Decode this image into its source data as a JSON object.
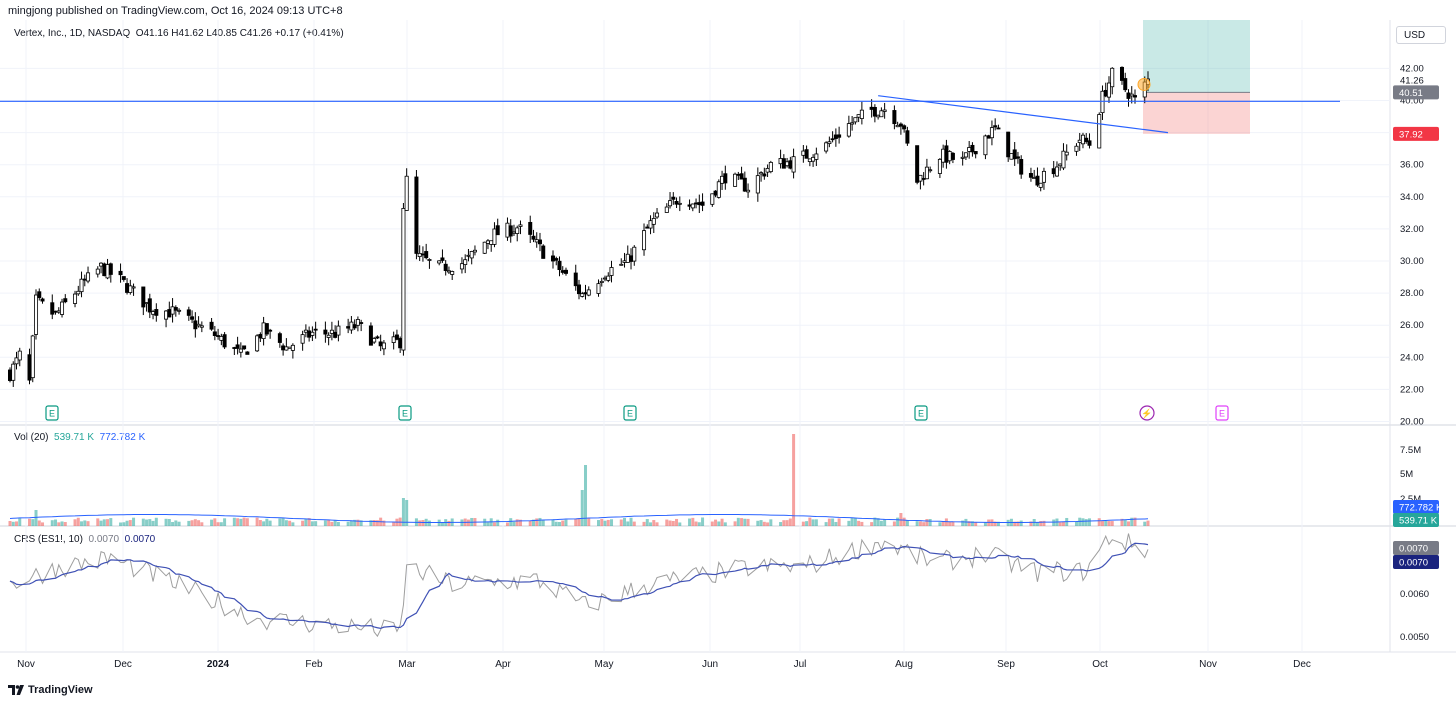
{
  "header": {
    "published": "mingjong published on TradingView.com, Oct 16, 2024 09:13 UTC+8",
    "symbol_line": "Vertex, Inc., 1D, NASDAQ",
    "ohlc": "O41.16 H41.62 L40.85 C41.26 +0.17 (+0.41%)"
  },
  "currency": "USD",
  "volume_legend": {
    "name": "Vol (20)",
    "v1": "539.71 K",
    "v2": "772.782 K"
  },
  "crs_legend": {
    "name": "CRS (ES1!, 10)",
    "v1": "0.0070",
    "v2": "0.0070"
  },
  "brand": "TradingView",
  "colors": {
    "up": "#26a69a",
    "down": "#ef5350",
    "line": "#2962ff",
    "candle": "#000000",
    "ma": "#3f51b5"
  },
  "price_badges": {
    "last": "40.51",
    "stop": "37.92",
    "near": "41.26"
  },
  "volume_badges": {
    "ma": "772.782 K",
    "vol": "539.71 K"
  },
  "crs_badges": {
    "v1": "0.0070",
    "v2": "0.0070"
  },
  "event_markers": [
    "E",
    "E",
    "E",
    "E",
    "⚡",
    "E"
  ],
  "chart_data": {
    "type": "candlestick",
    "title": "Vertex, Inc., 1D, NASDAQ",
    "x_labels": [
      "Nov",
      "Dec",
      "2024",
      "Feb",
      "Mar",
      "Apr",
      "May",
      "Jun",
      "Jul",
      "Aug",
      "Sep",
      "Oct",
      "Nov",
      "Dec"
    ],
    "price_axis": {
      "ticks": [
        "42.00",
        "40.00",
        "38.00",
        "36.00",
        "34.00",
        "32.00",
        "30.00",
        "28.00",
        "26.00",
        "24.00",
        "22.00",
        "20.00"
      ],
      "ylim": [
        20,
        43
      ]
    },
    "volume_axis": {
      "ticks": [
        "7.5M",
        "5M",
        "2.5M"
      ]
    },
    "crs_axis": {
      "ticks": [
        "0.0060",
        "0.0050"
      ]
    },
    "horizontal_line": 39.95,
    "trendline": [
      {
        "date": "2024-07-24",
        "price": 40.3
      },
      {
        "date": "2024-10-15",
        "price": 38.0
      }
    ],
    "position": {
      "entry": 40.51,
      "stop": 37.92,
      "target": 47.0
    },
    "price_anchors": [
      [
        "2023-10-31",
        23.0
      ],
      [
        "2023-11-03",
        24.1
      ],
      [
        "2023-11-06",
        22.4
      ],
      [
        "2023-11-08",
        27.5
      ],
      [
        "2023-11-14",
        26.6
      ],
      [
        "2023-11-22",
        28.5
      ],
      [
        "2023-11-28",
        29.6
      ],
      [
        "2023-12-04",
        28.8
      ],
      [
        "2023-12-13",
        27.1
      ],
      [
        "2023-12-20",
        26.8
      ],
      [
        "2024-01-02",
        25.4
      ],
      [
        "2024-01-10",
        24.1
      ],
      [
        "2024-01-17",
        25.7
      ],
      [
        "2024-01-24",
        24.6
      ],
      [
        "2024-02-01",
        25.5
      ],
      [
        "2024-02-08",
        25.5
      ],
      [
        "2024-02-15",
        26.0
      ],
      [
        "2024-02-22",
        24.6
      ],
      [
        "2024-02-28",
        25.0
      ],
      [
        "2024-02-29",
        33.5
      ],
      [
        "2024-03-01",
        35.0
      ],
      [
        "2024-03-04",
        30.3
      ],
      [
        "2024-03-11",
        29.6
      ],
      [
        "2024-03-19",
        29.9
      ],
      [
        "2024-03-27",
        31.6
      ],
      [
        "2024-04-04",
        32.1
      ],
      [
        "2024-04-10",
        31.0
      ],
      [
        "2024-04-17",
        29.5
      ],
      [
        "2024-04-24",
        27.9
      ],
      [
        "2024-05-01",
        29.3
      ],
      [
        "2024-05-08",
        30.0
      ],
      [
        "2024-05-15",
        32.3
      ],
      [
        "2024-05-24",
        34.0
      ],
      [
        "2024-05-31",
        33.5
      ],
      [
        "2024-06-07",
        35.3
      ],
      [
        "2024-06-14",
        34.6
      ],
      [
        "2024-06-21",
        36.0
      ],
      [
        "2024-06-28",
        36.2
      ],
      [
        "2024-07-08",
        37.2
      ],
      [
        "2024-07-15",
        38.5
      ],
      [
        "2024-07-22",
        39.4
      ],
      [
        "2024-07-26",
        39.5
      ],
      [
        "2024-07-31",
        38.6
      ],
      [
        "2024-08-05",
        35.0
      ],
      [
        "2024-08-12",
        36.6
      ],
      [
        "2024-08-19",
        36.2
      ],
      [
        "2024-08-26",
        37.8
      ],
      [
        "2024-08-29",
        38.2
      ],
      [
        "2024-09-04",
        36.2
      ],
      [
        "2024-09-10",
        35.0
      ],
      [
        "2024-09-17",
        36.0
      ],
      [
        "2024-09-24",
        37.6
      ],
      [
        "2024-09-27",
        37.3
      ],
      [
        "2024-10-01",
        40.2
      ],
      [
        "2024-10-04",
        41.6
      ],
      [
        "2024-10-09",
        40.5
      ],
      [
        "2024-10-11",
        40.0
      ],
      [
        "2024-10-15",
        41.26
      ]
    ],
    "volume_anchors_millions": [
      [
        "2023-10-31",
        0.5
      ],
      [
        "2023-11-08",
        1.6
      ],
      [
        "2024-02-29",
        2.8
      ],
      [
        "2024-03-01",
        2.6
      ],
      [
        "2024-04-24",
        3.6
      ],
      [
        "2024-04-25",
        6.1
      ],
      [
        "2024-06-28",
        9.2
      ],
      [
        "2024-07-31",
        1.3
      ],
      [
        "2024-10-15",
        0.54
      ]
    ],
    "crs_anchors": [
      [
        "2023-10-31",
        0.0062
      ],
      [
        "2023-11-15",
        0.0066
      ],
      [
        "2023-12-01",
        0.0068
      ],
      [
        "2023-12-15",
        0.0064
      ],
      [
        "2024-01-15",
        0.0054
      ],
      [
        "2024-02-15",
        0.0052
      ],
      [
        "2024-02-28",
        0.0051
      ],
      [
        "2024-03-01",
        0.0066
      ],
      [
        "2024-03-15",
        0.0062
      ],
      [
        "2024-04-10",
        0.0063
      ],
      [
        "2024-04-25",
        0.0057
      ],
      [
        "2024-05-15",
        0.0062
      ],
      [
        "2024-06-15",
        0.0066
      ],
      [
        "2024-07-01",
        0.0066
      ],
      [
        "2024-07-25",
        0.0072
      ],
      [
        "2024-08-10",
        0.0067
      ],
      [
        "2024-08-26",
        0.0069
      ],
      [
        "2024-09-10",
        0.0065
      ],
      [
        "2024-09-26",
        0.0065
      ],
      [
        "2024-10-03",
        0.0073
      ],
      [
        "2024-10-15",
        0.007
      ]
    ]
  }
}
